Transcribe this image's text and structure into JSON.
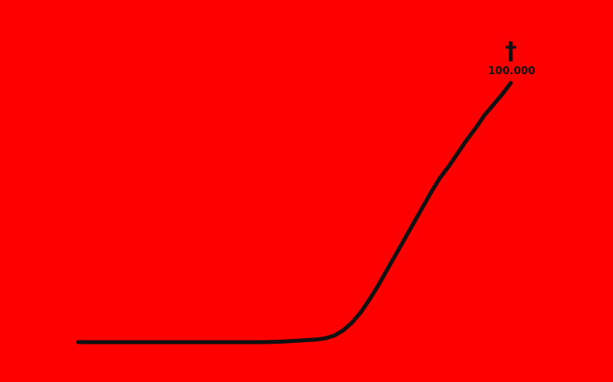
{
  "chart_data": {
    "type": "line",
    "title": "",
    "xlabel": "",
    "ylabel": "",
    "grid": false,
    "legend": "none",
    "ylim": [
      0,
      100000
    ],
    "series": [
      {
        "values": [
          0,
          0,
          0,
          0,
          0,
          0,
          0,
          0,
          0,
          0,
          0,
          0,
          0,
          0,
          0,
          0,
          0,
          0,
          0,
          0,
          0,
          0,
          100,
          200,
          400,
          600,
          800,
          1000,
          1500,
          2500,
          4500,
          7500,
          11500,
          16500,
          22000,
          28000,
          34000,
          40000,
          46000,
          52000,
          58000,
          63500,
          68000,
          73000,
          78000,
          82500,
          87500,
          91500,
          95500,
          100000
        ]
      }
    ],
    "end_label": "100.000",
    "end_symbol": "†",
    "colors": {
      "background": "#ff0000",
      "line": "#111111"
    }
  }
}
